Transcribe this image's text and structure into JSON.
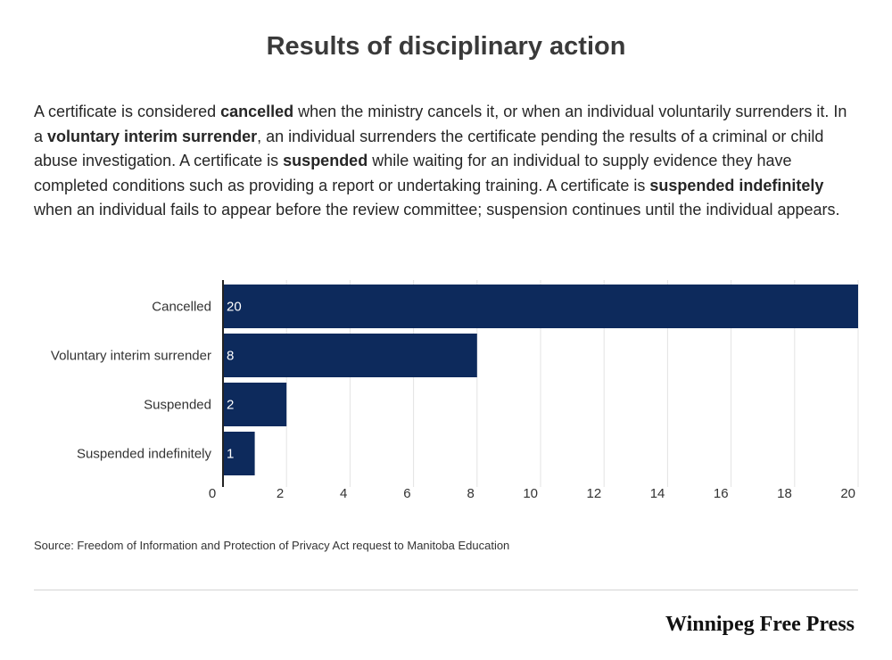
{
  "title": "Results of disciplinary action",
  "description": [
    {
      "text": "A certificate is considered ",
      "bold": false
    },
    {
      "text": "cancelled",
      "bold": true
    },
    {
      "text": " when the ministry cancels it, or when an individual voluntarily surrenders it. In a ",
      "bold": false
    },
    {
      "text": "voluntary interim surrender",
      "bold": true
    },
    {
      "text": ", an individual surrenders the certificate pending the results of a criminal or child abuse investigation. A certificate is ",
      "bold": false
    },
    {
      "text": "suspended",
      "bold": true
    },
    {
      "text": " while waiting for an individual to supply evidence they have completed conditions such as providing a report or undertaking training.  A certificate is ",
      "bold": false
    },
    {
      "text": "suspended indefinitely",
      "bold": true
    },
    {
      "text": " when an individual fails to appear before the review committee; suspension continues until the individual appears.",
      "bold": false
    }
  ],
  "chart_data": {
    "type": "bar",
    "orientation": "horizontal",
    "categories": [
      "Cancelled",
      "Voluntary interim surrender",
      "Suspended",
      "Suspended indefinitely"
    ],
    "values": [
      20,
      8,
      2,
      1
    ],
    "xlim": [
      0,
      20
    ],
    "xticks": [
      0,
      2,
      4,
      6,
      8,
      10,
      12,
      14,
      16,
      18,
      20
    ],
    "grid": true,
    "bar_color": "#0d2a5c",
    "data_label_color": "#ffffff"
  },
  "source": "Source: Freedom of Information and Protection of Privacy Act request to Manitoba Education",
  "brand": "Winnipeg Free Press"
}
